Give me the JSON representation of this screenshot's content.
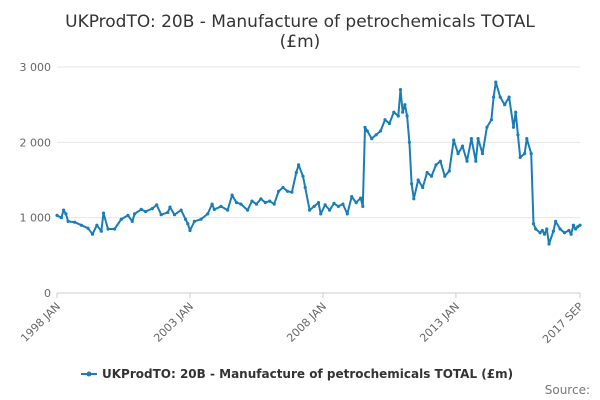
{
  "chart_data": {
    "type": "line",
    "title_line1": "UKProdTO: 20B - Manufacture of petrochemicals TOTAL",
    "title_line2": "(£m)",
    "ylim": [
      0,
      3000
    ],
    "y_ticks": [
      0,
      1000,
      2000,
      3000
    ],
    "y_tick_labels": [
      "0",
      "1 000",
      "2 000",
      "3 000"
    ],
    "x_ticks": [
      {
        "year": 1998,
        "month": 1,
        "label": "1998 JAN"
      },
      {
        "year": 2003,
        "month": 1,
        "label": "2003 JAN"
      },
      {
        "year": 2008,
        "month": 1,
        "label": "2008 JAN"
      },
      {
        "year": 2013,
        "month": 1,
        "label": "2013 JAN"
      },
      {
        "year": 2017,
        "month": 9,
        "label": "2017 SEP"
      }
    ],
    "x_range": [
      "1998-01",
      "2017-09"
    ],
    "grid": true,
    "legend_position": "bottom-center",
    "credit": "Source:",
    "color": "#1a7db6",
    "series": [
      {
        "name": "UKProdTO: 20B - Manufacture of petrochemicals TOTAL (£m)",
        "points": [
          [
            "1998-01",
            1030
          ],
          [
            "1998-03",
            1000
          ],
          [
            "1998-04",
            1100
          ],
          [
            "1998-05",
            1050
          ],
          [
            "1998-06",
            950
          ],
          [
            "1998-09",
            940
          ],
          [
            "1998-12",
            900
          ],
          [
            "1999-03",
            860
          ],
          [
            "1999-05",
            780
          ],
          [
            "1999-07",
            900
          ],
          [
            "1999-09",
            820
          ],
          [
            "1999-10",
            1060
          ],
          [
            "1999-12",
            850
          ],
          [
            "2000-03",
            850
          ],
          [
            "2000-06",
            980
          ],
          [
            "2000-09",
            1030
          ],
          [
            "2000-11",
            950
          ],
          [
            "2000-12",
            1050
          ],
          [
            "2001-03",
            1110
          ],
          [
            "2001-05",
            1080
          ],
          [
            "2001-08",
            1120
          ],
          [
            "2001-10",
            1170
          ],
          [
            "2001-12",
            1040
          ],
          [
            "2002-03",
            1070
          ],
          [
            "2002-04",
            1140
          ],
          [
            "2002-06",
            1040
          ],
          [
            "2002-09",
            1100
          ],
          [
            "2002-11",
            980
          ],
          [
            "2002-12",
            920
          ],
          [
            "2003-01",
            830
          ],
          [
            "2003-03",
            950
          ],
          [
            "2003-06",
            980
          ],
          [
            "2003-09",
            1050
          ],
          [
            "2003-11",
            1180
          ],
          [
            "2003-12",
            1110
          ],
          [
            "2004-03",
            1150
          ],
          [
            "2004-06",
            1100
          ],
          [
            "2004-08",
            1300
          ],
          [
            "2004-10",
            1200
          ],
          [
            "2004-12",
            1180
          ],
          [
            "2005-03",
            1100
          ],
          [
            "2005-05",
            1220
          ],
          [
            "2005-07",
            1180
          ],
          [
            "2005-09",
            1250
          ],
          [
            "2005-11",
            1200
          ],
          [
            "2006-01",
            1220
          ],
          [
            "2006-03",
            1180
          ],
          [
            "2006-05",
            1350
          ],
          [
            "2006-07",
            1400
          ],
          [
            "2006-09",
            1350
          ],
          [
            "2006-11",
            1340
          ],
          [
            "2007-01",
            1600
          ],
          [
            "2007-02",
            1700
          ],
          [
            "2007-04",
            1550
          ],
          [
            "2007-05",
            1400
          ],
          [
            "2007-07",
            1100
          ],
          [
            "2007-09",
            1150
          ],
          [
            "2007-11",
            1200
          ],
          [
            "2007-12",
            1050
          ],
          [
            "2008-02",
            1170
          ],
          [
            "2008-04",
            1100
          ],
          [
            "2008-06",
            1190
          ],
          [
            "2008-08",
            1150
          ],
          [
            "2008-10",
            1180
          ],
          [
            "2008-12",
            1050
          ],
          [
            "2009-02",
            1280
          ],
          [
            "2009-04",
            1200
          ],
          [
            "2009-06",
            1260
          ],
          [
            "2009-07",
            1150
          ],
          [
            "2009-08",
            2200
          ],
          [
            "2009-09",
            2150
          ],
          [
            "2009-11",
            2050
          ],
          [
            "2010-01",
            2100
          ],
          [
            "2010-03",
            2150
          ],
          [
            "2010-05",
            2300
          ],
          [
            "2010-07",
            2250
          ],
          [
            "2010-09",
            2400
          ],
          [
            "2010-11",
            2350
          ],
          [
            "2010-12",
            2700
          ],
          [
            "2011-01",
            2400
          ],
          [
            "2011-02",
            2500
          ],
          [
            "2011-03",
            2350
          ],
          [
            "2011-04",
            2000
          ],
          [
            "2011-05",
            1450
          ],
          [
            "2011-06",
            1250
          ],
          [
            "2011-08",
            1500
          ],
          [
            "2011-10",
            1400
          ],
          [
            "2011-12",
            1600
          ],
          [
            "2012-02",
            1550
          ],
          [
            "2012-04",
            1700
          ],
          [
            "2012-06",
            1750
          ],
          [
            "2012-08",
            1550
          ],
          [
            "2012-10",
            1620
          ],
          [
            "2012-12",
            2030
          ],
          [
            "2013-02",
            1850
          ],
          [
            "2013-04",
            1950
          ],
          [
            "2013-06",
            1750
          ],
          [
            "2013-08",
            2050
          ],
          [
            "2013-10",
            1750
          ],
          [
            "2013-11",
            2050
          ],
          [
            "2014-01",
            1850
          ],
          [
            "2014-03",
            2200
          ],
          [
            "2014-05",
            2300
          ],
          [
            "2014-06",
            2600
          ],
          [
            "2014-07",
            2800
          ],
          [
            "2014-09",
            2600
          ],
          [
            "2014-11",
            2500
          ],
          [
            "2015-01",
            2600
          ],
          [
            "2015-03",
            2200
          ],
          [
            "2015-04",
            2400
          ],
          [
            "2015-05",
            2100
          ],
          [
            "2015-06",
            1800
          ],
          [
            "2015-08",
            1850
          ],
          [
            "2015-09",
            2050
          ],
          [
            "2015-11",
            1850
          ],
          [
            "2015-12",
            920
          ],
          [
            "2016-01",
            850
          ],
          [
            "2016-03",
            800
          ],
          [
            "2016-04",
            830
          ],
          [
            "2016-05",
            780
          ],
          [
            "2016-06",
            850
          ],
          [
            "2016-07",
            650
          ],
          [
            "2016-09",
            820
          ],
          [
            "2016-10",
            950
          ],
          [
            "2016-12",
            850
          ],
          [
            "2017-02",
            800
          ],
          [
            "2017-04",
            830
          ],
          [
            "2017-05",
            780
          ],
          [
            "2017-06",
            900
          ],
          [
            "2017-07",
            850
          ],
          [
            "2017-08",
            880
          ],
          [
            "2017-09",
            900
          ]
        ]
      }
    ]
  }
}
